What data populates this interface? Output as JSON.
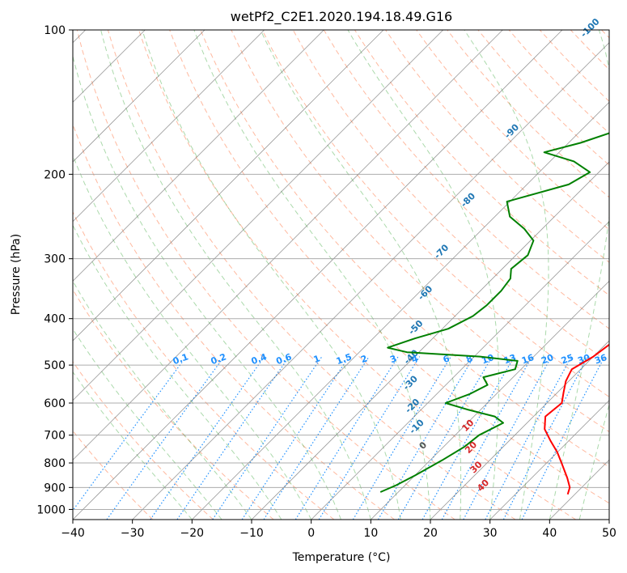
{
  "chart_data": {
    "type": "line",
    "title": "wetPf2_C2E1.2020.194.18.49.G16",
    "xlabel": "Temperature (°C)",
    "ylabel": "Pressure (hPa)",
    "xlim": [
      -40,
      50
    ],
    "ylim": [
      1050,
      100
    ],
    "y_scale": "log",
    "x_ticks": [
      "−40",
      "−30",
      "−20",
      "−10",
      "0",
      "10",
      "20",
      "30",
      "40",
      "50"
    ],
    "y_ticks": [
      "100",
      "200",
      "300",
      "400",
      "500",
      "600",
      "700",
      "800",
      "900",
      "1000"
    ],
    "grid": true,
    "series": [
      {
        "color": "#ff0000",
        "points": [
          [
            3.5,
            100
          ],
          [
            4.5,
            115
          ],
          [
            5.5,
            130
          ],
          [
            6.5,
            150
          ],
          [
            7.0,
            175
          ],
          [
            7.5,
            200
          ],
          [
            9.0,
            225
          ],
          [
            11.0,
            250
          ],
          [
            13.0,
            280
          ],
          [
            15.5,
            320
          ],
          [
            18.0,
            360
          ],
          [
            20.5,
            400
          ],
          [
            21.0,
            440
          ],
          [
            20.0,
            480
          ],
          [
            18.5,
            510
          ],
          [
            19.5,
            540
          ],
          [
            21.0,
            570
          ],
          [
            22.5,
            600
          ],
          [
            22.0,
            640
          ],
          [
            24.0,
            680
          ],
          [
            27.0,
            720
          ],
          [
            30.0,
            760
          ],
          [
            32.5,
            800
          ],
          [
            36.0,
            860
          ],
          [
            38.0,
            900
          ],
          [
            38.8,
            930
          ]
        ]
      },
      {
        "color": "#008000",
        "points": [
          [
            1.5,
            100
          ],
          [
            -1.5,
            110
          ],
          [
            -5.0,
            120
          ],
          [
            -7.5,
            130
          ],
          [
            -9.5,
            145
          ],
          [
            -13.0,
            160
          ],
          [
            -18.0,
            172
          ],
          [
            -22.5,
            180
          ],
          [
            -16.0,
            188
          ],
          [
            -11.5,
            198
          ],
          [
            -13.0,
            210
          ],
          [
            -20.5,
            228
          ],
          [
            -17.5,
            245
          ],
          [
            -13.0,
            260
          ],
          [
            -9.5,
            275
          ],
          [
            -8.0,
            295
          ],
          [
            -8.5,
            315
          ],
          [
            -7.0,
            330
          ],
          [
            -6.5,
            350
          ],
          [
            -6.5,
            375
          ],
          [
            -7.0,
            395
          ],
          [
            -9.0,
            420
          ],
          [
            -13.0,
            440
          ],
          [
            -16.0,
            460
          ],
          [
            -12.0,
            470
          ],
          [
            1.0,
            480
          ],
          [
            8.0,
            490
          ],
          [
            9.0,
            510
          ],
          [
            5.0,
            530
          ],
          [
            7.0,
            550
          ],
          [
            5.5,
            575
          ],
          [
            3.0,
            600
          ],
          [
            8.0,
            620
          ],
          [
            13.5,
            640
          ],
          [
            16.0,
            660
          ],
          [
            14.0,
            700
          ],
          [
            13.5,
            740
          ],
          [
            12.0,
            790
          ],
          [
            10.0,
            850
          ],
          [
            8.5,
            890
          ],
          [
            7.0,
            920
          ]
        ]
      }
    ],
    "dry_adiabat_labels": [
      "-100",
      "-90",
      "-80",
      "-70",
      "-60",
      "-50",
      "-40",
      "-30",
      "-20",
      "-10",
      "0",
      "10",
      "20",
      "30",
      "40"
    ],
    "mixing_ratio_labels": [
      "0.1",
      "0.2",
      "0.4",
      "0.6",
      "1",
      "1.5",
      "2",
      "3",
      "4",
      "6",
      "8",
      "10",
      "13",
      "16",
      "20",
      "25",
      "30",
      "36"
    ],
    "colors": {
      "temperature": "#ff0000",
      "dewpoint": "#008000",
      "dry_adiabats": "#ff7f50",
      "moist_adiabats": "#2ca02c",
      "mixing_ratio": "#1e90ff",
      "isotherms": "#555555",
      "adiabat_label_cold": "#1f77b4",
      "adiabat_label_zero": "#555555",
      "adiabat_label_warm": "#d62728"
    }
  }
}
